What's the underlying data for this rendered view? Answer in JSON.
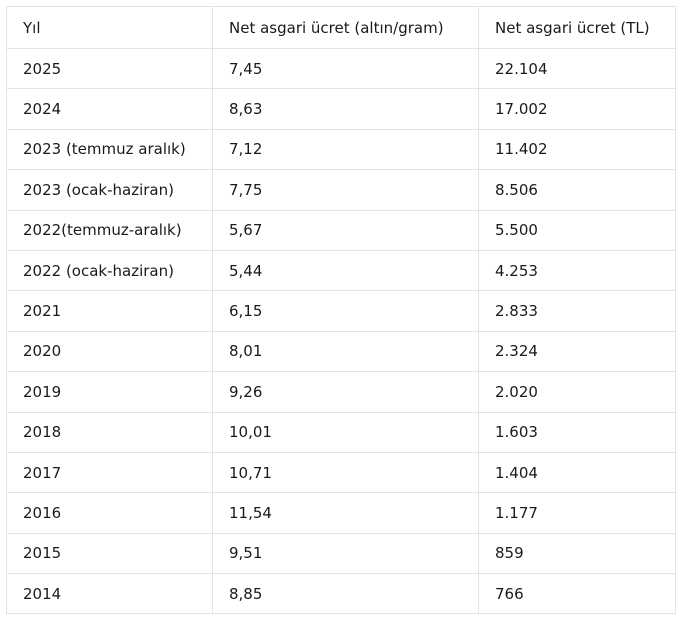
{
  "table": {
    "headers": [
      "Yıl",
      "Net asgari ücret (altın/gram)",
      "Net asgari ücret (TL)"
    ],
    "rows": [
      [
        "2025",
        "7,45",
        "22.104"
      ],
      [
        "2024",
        "8,63",
        "17.002"
      ],
      [
        "2023 (temmuz aralık)",
        "7,12",
        "11.402"
      ],
      [
        "2023 (ocak-haziran)",
        "7,75",
        "8.506"
      ],
      [
        "2022(temmuz-aralık)",
        "5,67",
        "5.500"
      ],
      [
        "2022 (ocak-haziran)",
        "5,44",
        "4.253"
      ],
      [
        "2021",
        "6,15",
        "2.833"
      ],
      [
        "2020",
        "8,01",
        "2.324"
      ],
      [
        "2019",
        "9,26",
        "2.020"
      ],
      [
        "2018",
        "10,01",
        "1.603"
      ],
      [
        "2017",
        "10,71",
        "1.404"
      ],
      [
        "2016",
        "11,54",
        "1.177"
      ],
      [
        "2015",
        "9,51",
        "859"
      ],
      [
        "2014",
        "8,85",
        "766"
      ]
    ]
  }
}
